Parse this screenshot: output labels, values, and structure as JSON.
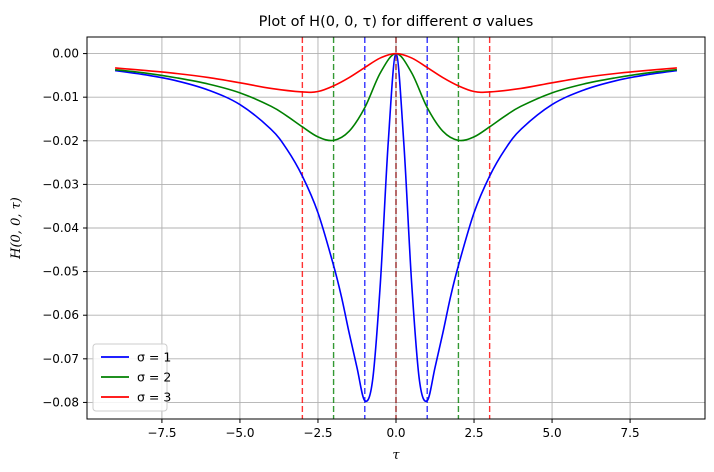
{
  "chart_data": {
    "type": "line",
    "title": "Plot of H(0, 0, τ) for different σ values",
    "xlabel": "τ",
    "ylabel": "H(0, 0, τ)",
    "xlim": [
      -9.9,
      9.9
    ],
    "ylim": [
      -0.0838,
      0.0038
    ],
    "grid": true,
    "legend_position": "lower-left",
    "x_ticks": [
      -7.5,
      -5.0,
      -2.5,
      0.0,
      2.5,
      5.0,
      7.5
    ],
    "x_tick_labels": [
      "−7.5",
      "−5.0",
      "−2.5",
      "0.0",
      "2.5",
      "5.0",
      "7.5"
    ],
    "y_ticks": [
      0.0,
      -0.01,
      -0.02,
      -0.03,
      -0.04,
      -0.05,
      -0.06,
      -0.07,
      -0.08
    ],
    "y_tick_labels": [
      "0.00",
      "−0.01",
      "−0.02",
      "−0.03",
      "−0.04",
      "−0.05",
      "−0.06",
      "−0.07",
      "−0.08"
    ],
    "series": [
      {
        "name": "σ = 1",
        "color": "#0000ff",
        "x": [
          -9,
          -8,
          -7,
          -6,
          -5,
          -4,
          -3.5,
          -3,
          -2.5,
          -2,
          -1.75,
          -1.5,
          -1.25,
          -1,
          -0.75,
          -0.5,
          -0.25,
          0,
          0.25,
          0.5,
          0.75,
          1,
          1.25,
          1.5,
          1.75,
          2,
          2.5,
          3,
          3.5,
          4,
          5,
          6,
          7,
          8,
          9
        ],
        "values": [
          -0.0039,
          -0.0049,
          -0.0063,
          -0.0084,
          -0.0117,
          -0.0174,
          -0.0219,
          -0.0281,
          -0.0365,
          -0.0486,
          -0.0557,
          -0.0641,
          -0.072,
          -0.0796,
          -0.0749,
          -0.0525,
          -0.0205,
          0,
          -0.0205,
          -0.0525,
          -0.0749,
          -0.0796,
          -0.072,
          -0.0641,
          -0.0557,
          -0.0486,
          -0.0365,
          -0.0281,
          -0.0219,
          -0.0174,
          -0.0117,
          -0.0084,
          -0.0063,
          -0.0049,
          -0.0039
        ]
      },
      {
        "name": "σ = 2",
        "color": "#008000",
        "x": [
          -9,
          -8,
          -7,
          -6,
          -5,
          -4,
          -3.5,
          -3,
          -2.5,
          -2,
          -1.5,
          -1,
          -0.5,
          0,
          0.5,
          1,
          1.5,
          2,
          2.5,
          3,
          3.5,
          4,
          5,
          6,
          7,
          8,
          9
        ],
        "values": [
          -0.0037,
          -0.0045,
          -0.0056,
          -0.007,
          -0.009,
          -0.0121,
          -0.0143,
          -0.0168,
          -0.0191,
          -0.0199,
          -0.0178,
          -0.0124,
          -0.0044,
          0,
          -0.0044,
          -0.0124,
          -0.0178,
          -0.0199,
          -0.0191,
          -0.0168,
          -0.0143,
          -0.0121,
          -0.009,
          -0.007,
          -0.0056,
          -0.0045,
          -0.0037
        ]
      },
      {
        "name": "σ = 3",
        "color": "#ff0000",
        "x": [
          -9,
          -8,
          -7,
          -6,
          -5,
          -4,
          -3,
          -2.5,
          -2,
          -1.5,
          -1,
          -0.5,
          0,
          0.5,
          1,
          1.5,
          2,
          2.5,
          3,
          4,
          5,
          6,
          7,
          8,
          9
        ],
        "values": [
          -0.0033,
          -0.0039,
          -0.0046,
          -0.0055,
          -0.0067,
          -0.008,
          -0.0088,
          -0.0087,
          -0.0074,
          -0.0055,
          -0.0032,
          -0.001,
          0,
          -0.001,
          -0.0032,
          -0.0055,
          -0.0074,
          -0.0087,
          -0.0088,
          -0.008,
          -0.0067,
          -0.0055,
          -0.0046,
          -0.0039,
          -0.0033
        ]
      }
    ],
    "vertical_dashed_lines": [
      {
        "x": -1,
        "color": "#0000ff"
      },
      {
        "x": 1,
        "color": "#0000ff"
      },
      {
        "x": -2,
        "color": "#008000"
      },
      {
        "x": 2,
        "color": "#008000"
      },
      {
        "x": -3,
        "color": "#ff0000"
      },
      {
        "x": 3,
        "color": "#ff0000"
      },
      {
        "x": 0,
        "color": "#8b0000"
      }
    ]
  }
}
